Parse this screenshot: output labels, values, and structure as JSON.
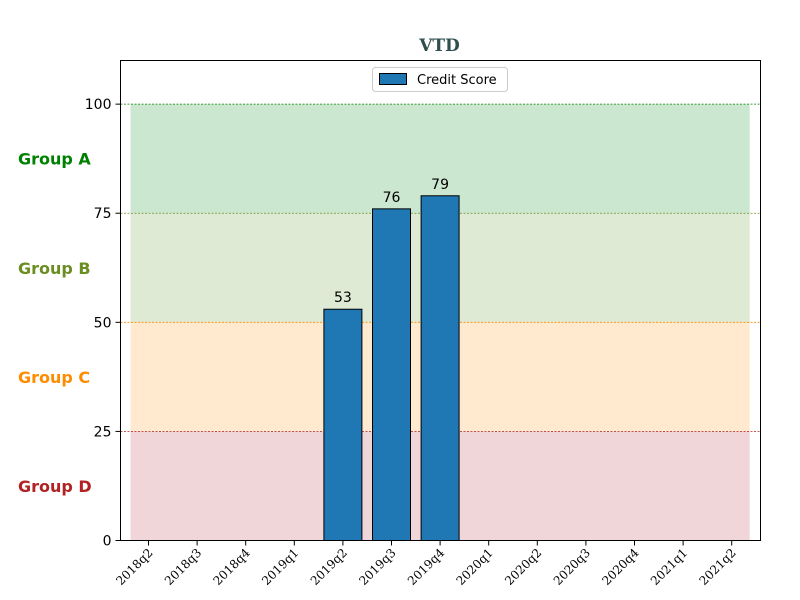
{
  "chart_data": {
    "type": "bar",
    "title": "VTD",
    "categories": [
      "2018q2",
      "2018q3",
      "2018q4",
      "2019q1",
      "2019q2",
      "2019q3",
      "2019q4",
      "2020q1",
      "2020q2",
      "2020q3",
      "2020q4",
      "2021q1",
      "2021q2"
    ],
    "series": [
      {
        "name": "Credit Score",
        "values": [
          null,
          null,
          null,
          null,
          53,
          76,
          79,
          null,
          null,
          null,
          null,
          null,
          null
        ],
        "color": "#1f77b4"
      }
    ],
    "ylim": [
      0,
      110
    ],
    "yticks": [
      "0",
      "25",
      "50",
      "75",
      "100"
    ],
    "bands": [
      {
        "label": "Group A",
        "from": 75,
        "to": 100,
        "fill": "#a3d3a8",
        "text_color": "#008000",
        "line_color": "#008000"
      },
      {
        "label": "Group B",
        "from": 50,
        "to": 75,
        "fill": "#c5d8b0",
        "text_color": "#6b8e23",
        "line_color": "#6b8e23"
      },
      {
        "label": "Group C",
        "from": 25,
        "to": 50,
        "fill": "#ffd8a8",
        "text_color": "#ff8c00",
        "line_color": "#ff8c00"
      },
      {
        "label": "Group D",
        "from": 0,
        "to": 25,
        "fill": "#e3b5b8",
        "text_color": "#b22222",
        "line_color": "#b22222"
      }
    ],
    "legend_position": "top-center",
    "grid": false
  }
}
